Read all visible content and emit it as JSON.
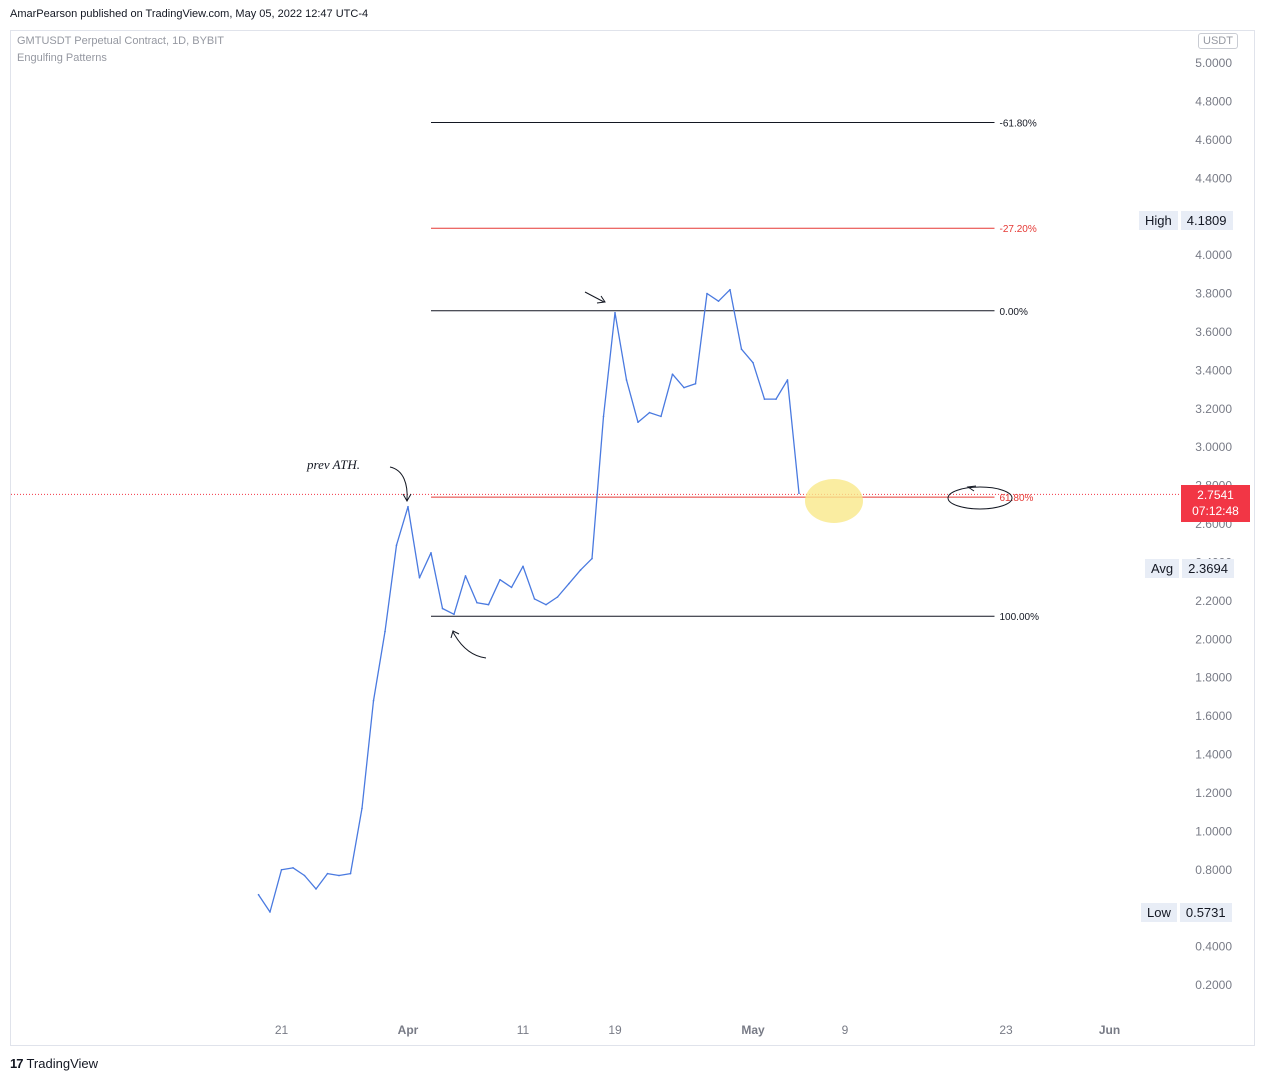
{
  "header": {
    "publish_line": "AmarPearson published on TradingView.com, May 05, 2022 12:47 UTC-4",
    "symbol": "GMTUSDT Perpetual Contract, 1D, BYBIT",
    "indicator": "Engulfing Patterns",
    "unit": "USDT"
  },
  "footer": {
    "logo_mark": "17",
    "logo_text": "TradingView"
  },
  "stats": {
    "high_label": "High",
    "high_value": "4.1809",
    "avg_label": "Avg",
    "avg_value": "2.3694",
    "low_label": "Low",
    "low_value": "0.5731"
  },
  "price_tag": {
    "price": "2.7541",
    "countdown": "07:12:48",
    "color": "#f23645"
  },
  "annotation": {
    "prev_ath": "prev ATH."
  },
  "chart_data": {
    "type": "line",
    "series": [
      {
        "color": "#4a7ae0",
        "x": [
          19,
          20,
          21,
          22,
          23,
          24,
          25,
          26,
          27,
          28,
          29,
          30,
          31,
          32,
          33,
          34,
          35,
          36,
          37,
          38,
          39,
          40,
          41,
          42,
          43,
          44,
          45,
          46,
          47,
          48,
          49,
          50,
          51,
          52,
          53,
          54,
          55,
          56,
          57,
          58,
          59,
          60,
          61,
          62,
          63,
          64,
          65,
          66,
          67,
          68
        ],
        "values": [
          0.67,
          0.58,
          0.8,
          0.81,
          0.77,
          0.7,
          0.78,
          0.77,
          0.78,
          1.12,
          1.68,
          2.04,
          2.49,
          2.69,
          2.32,
          2.45,
          2.16,
          2.13,
          2.33,
          2.19,
          2.18,
          2.31,
          2.27,
          2.38,
          2.21,
          2.18,
          2.22,
          2.29,
          2.36,
          2.42,
          3.16,
          3.7,
          3.35,
          3.13,
          3.18,
          3.16,
          3.38,
          3.31,
          3.33,
          3.8,
          3.76,
          3.82,
          3.51,
          3.44,
          3.25,
          3.25,
          3.35,
          2.76,
          null,
          null
        ]
      }
    ],
    "x_ticks": [
      {
        "x": 21,
        "label": "21",
        "bold": false
      },
      {
        "x": 32,
        "label": "Apr",
        "bold": true
      },
      {
        "x": 42,
        "label": "11",
        "bold": false
      },
      {
        "x": 50,
        "label": "19",
        "bold": false
      },
      {
        "x": 62,
        "label": "May",
        "bold": true
      },
      {
        "x": 70,
        "label": "9",
        "bold": false
      },
      {
        "x": 84,
        "label": "23",
        "bold": false
      },
      {
        "x": 93,
        "label": "Jun",
        "bold": true
      }
    ],
    "y_ticks": [
      "0.2000",
      "0.4000",
      "0.6000",
      "0.8000",
      "1.0000",
      "1.2000",
      "1.4000",
      "1.6000",
      "1.8000",
      "2.0000",
      "2.2000",
      "2.4000",
      "2.6000",
      "2.8000",
      "3.0000",
      "3.2000",
      "3.4000",
      "3.6000",
      "3.8000",
      "4.0000",
      "4.2000",
      "4.4000",
      "4.6000",
      "4.8000",
      "5.0000"
    ],
    "fib_levels": [
      {
        "label": "-61.80%",
        "value": 4.69,
        "color": "#131722"
      },
      {
        "label": "-27.20%",
        "value": 4.14,
        "color": "#e53935"
      },
      {
        "label": "0.00%",
        "value": 3.71,
        "color": "#131722"
      },
      {
        "label": "61.80%",
        "value": 2.74,
        "color": "#e53935"
      },
      {
        "label": "100.00%",
        "value": 2.12,
        "color": "#131722"
      }
    ],
    "fib_x_range": [
      34,
      83
    ],
    "last_price": 2.7541,
    "highlight_point": {
      "x": 68,
      "value": 2.72,
      "color": "#f9e98a"
    }
  }
}
